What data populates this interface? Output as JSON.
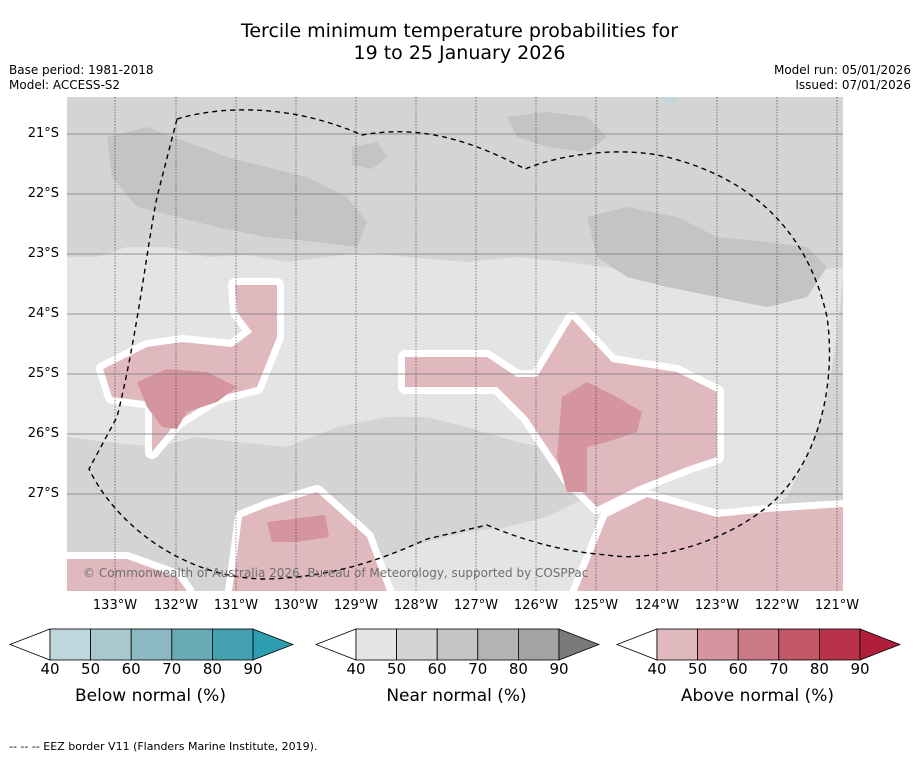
{
  "title": {
    "line1": "Tercile minimum temperature probabilities for",
    "line2": "19 to 25 January 2026"
  },
  "meta": {
    "base_period": "Base period: 1981-2018",
    "model": "Model: ACCESS-S2",
    "model_run": "Model run: 05/01/2026",
    "issued": "Issued: 07/01/2026"
  },
  "map": {
    "copyright": "© Commonwealth of Australia 2026, Bureau of Meteorology, supported by COSPPac",
    "lat_labels": [
      "21°S",
      "22°S",
      "23°S",
      "24°S",
      "25°S",
      "26°S",
      "27°S"
    ],
    "lon_labels": [
      "133°W",
      "132°W",
      "131°W",
      "130°W",
      "129°W",
      "128°W",
      "127°W",
      "126°W",
      "125°W",
      "124°W",
      "123°W",
      "122°W",
      "121°W"
    ]
  },
  "colorbars": [
    {
      "label": "Below normal (%)",
      "ticks": [
        "40",
        "50",
        "60",
        "70",
        "80",
        "90"
      ],
      "colors": [
        "#ffffff",
        "#bfd6dc",
        "#a8c9cf",
        "#8bb8c2",
        "#6aa9b6",
        "#45a0b0",
        "#2f9db0"
      ]
    },
    {
      "label": "Near normal (%)",
      "ticks": [
        "40",
        "50",
        "60",
        "70",
        "80",
        "90"
      ],
      "colors": [
        "#ffffff",
        "#e4e4e4",
        "#d4d4d4",
        "#c4c4c4",
        "#b4b4b4",
        "#a3a3a3",
        "#7a7a7a"
      ]
    },
    {
      "label": "Above normal (%)",
      "ticks": [
        "40",
        "50",
        "60",
        "70",
        "80",
        "90"
      ],
      "colors": [
        "#ffffff",
        "#e0b9bf",
        "#d4959f",
        "#cc7a85",
        "#c35766",
        "#b8324a",
        "#b01e3a"
      ]
    }
  ],
  "footnote": "--  --  -- EEZ border V11 (Flanders Marine Institute, 2019).",
  "palette": {
    "near_light": "#e4e4e4",
    "near_mid": "#d4d4d4",
    "near_dark": "#c4c4c4",
    "above_light": "#e0b9bf",
    "above_mid": "#d4959f",
    "above_dark": "#cc7a85"
  }
}
